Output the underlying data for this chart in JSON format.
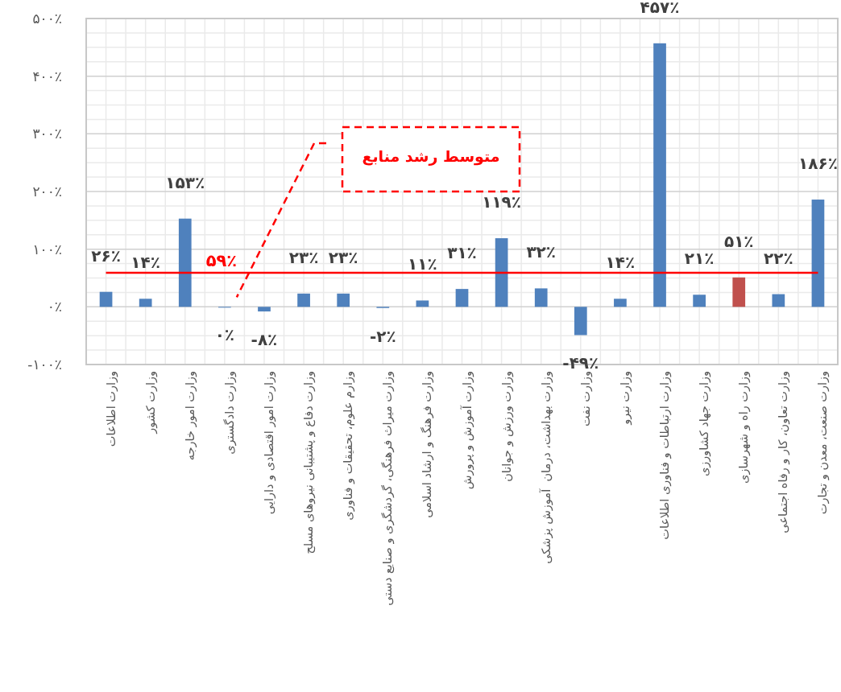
{
  "chart_data": {
    "type": "bar",
    "categories": [
      "وزارت اطلاعات",
      "وزارت کشور",
      "وزارت امور خارجه",
      "وزارت دادگستری",
      "وزارت امور اقتصادی و دارایی",
      "وزارت دفاع و پشتیبانی نیروهای مسلح",
      "وزارم علوم، تحقیقات و فناوری",
      "وزارت میراث فرهنگی، گردشگری و صنایع دستی",
      "وزارت فرهنگ و ارشاد اسلامی",
      "وزارت آموزش و پرورش",
      "وزارت ورزش و جوانان",
      "وزارت بهداشت، درمان  آموزش پزشکی",
      "وزارت نفت",
      "وزارت نیرو",
      "وزارت ارتباطات و فناوری اطلاعات",
      "وزارت جهاد کشاورزی",
      "وزارت راه و شهرسازی",
      "وزارت تعاون، کار و رفاه اجتماعی",
      "وزارت صنعت، معدن و تجارت"
    ],
    "values": [
      26,
      14,
      153,
      0,
      -8,
      23,
      23,
      -2,
      11,
      31,
      119,
      32,
      -49,
      14,
      457,
      21,
      51,
      22,
      186
    ],
    "colors": [
      "#4f81bd",
      "#4f81bd",
      "#4f81bd",
      "#4f81bd",
      "#4f81bd",
      "#4f81bd",
      "#4f81bd",
      "#4f81bd",
      "#4f81bd",
      "#4f81bd",
      "#4f81bd",
      "#4f81bd",
      "#4f81bd",
      "#4f81bd",
      "#4f81bd",
      "#4f81bd",
      "#c0504d",
      "#4f81bd",
      "#4f81bd"
    ],
    "value_labels": [
      "۲۶٪",
      "۱۴٪",
      "۱۵۳٪",
      "۰٪",
      "-۸٪",
      "۲۳٪",
      "۲۳٪",
      "-۲٪",
      "۱۱٪",
      "۳۱٪",
      "۱۱۹٪",
      "۳۲٪",
      "-۴۹٪",
      "۱۴٪",
      "۴۵۷٪",
      "۲۱٪",
      "۵۱٪",
      "۲۲٪",
      "۱۸۶٪"
    ],
    "ylim": [
      -100,
      500
    ],
    "yticks": [
      {
        "value": -100,
        "label": "-۱۰۰٪"
      },
      {
        "value": 0,
        "label": "۰٪"
      },
      {
        "value": 100,
        "label": "۱۰۰٪"
      },
      {
        "value": 200,
        "label": "۲۰۰٪"
      },
      {
        "value": 300,
        "label": "۳۰۰٪"
      },
      {
        "value": 400,
        "label": "۴۰۰٪"
      },
      {
        "value": 500,
        "label": "۵۰۰٪"
      }
    ],
    "grid": true,
    "ref_lines": [
      {
        "axis": "y",
        "value": 59,
        "label": "۵۹٪",
        "color": "#ff0000"
      }
    ],
    "annotations": [
      "متوسط رشد منابع"
    ]
  }
}
